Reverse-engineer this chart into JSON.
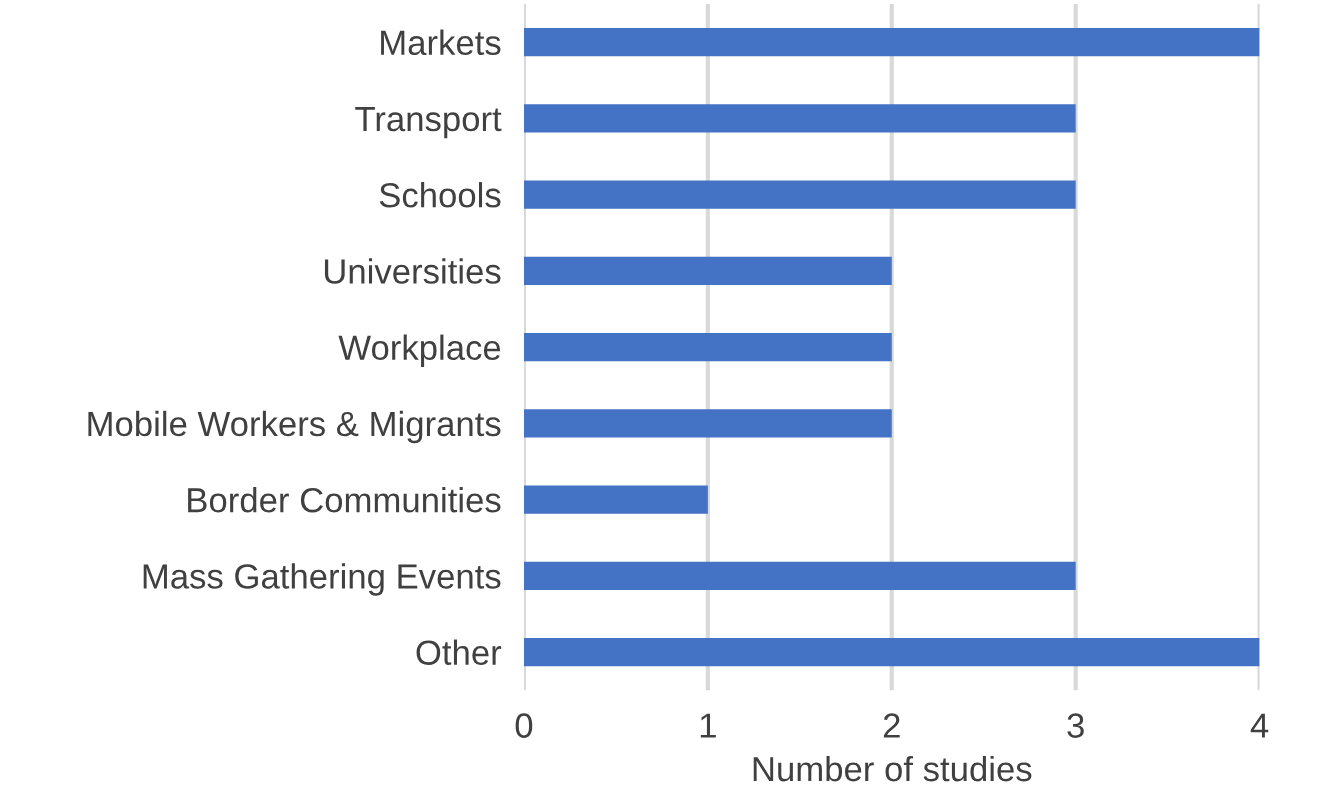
{
  "chart_data": {
    "type": "bar",
    "orientation": "horizontal",
    "xlabel": "Number of studies",
    "categories": [
      "Markets",
      "Transport",
      "Schools",
      "Universities",
      "Workplace",
      "Mobile Workers & Migrants",
      "Border Communities",
      "Mass Gathering Events",
      "Other"
    ],
    "values": [
      4,
      3,
      3,
      2,
      2,
      2,
      1,
      3,
      4
    ],
    "color": "#4472c4",
    "xlim": [
      0,
      4
    ],
    "xticks": [
      0,
      1,
      2,
      3,
      4
    ],
    "grid": "x"
  }
}
